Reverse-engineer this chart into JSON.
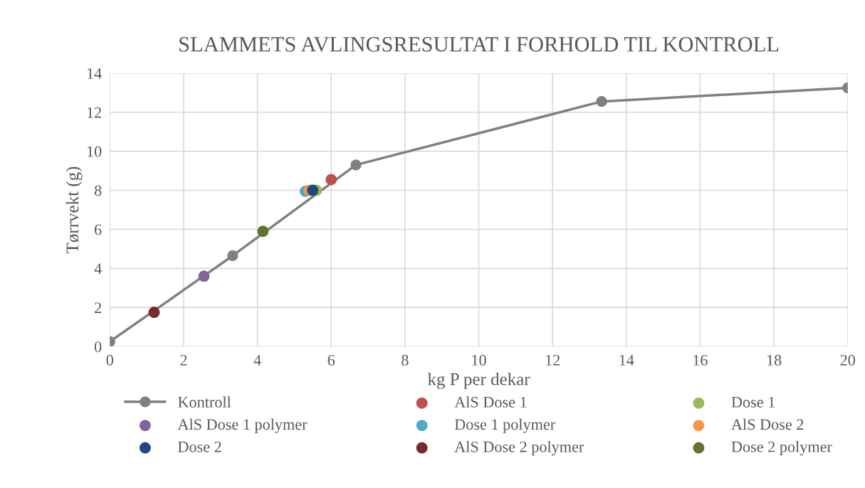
{
  "chart_data": {
    "type": "scatter",
    "title": "SLAMMETS AVLINGSRESULTAT I FORHOLD TIL KONTROLL",
    "xlabel": "kg P per dekar",
    "ylabel": "Tørrvekt (g)",
    "xlim": [
      0,
      20
    ],
    "xticks": [
      0,
      2,
      4,
      6,
      8,
      10,
      12,
      14,
      16,
      18,
      20
    ],
    "ylim": [
      0,
      14
    ],
    "yticks": [
      0,
      2,
      4,
      6,
      8,
      10,
      12,
      14
    ],
    "grid": true,
    "legend": "bottom",
    "marker": "circle",
    "series": [
      {
        "name": "Kontroll",
        "type": "line",
        "color": "#808080",
        "x": [
          0,
          3.33,
          6.67,
          13.33,
          20
        ],
        "values": [
          0.25,
          4.65,
          9.3,
          12.55,
          13.25
        ]
      },
      {
        "name": "AlS Dose 1",
        "color": "#c0504d",
        "x": [
          6.0
        ],
        "values": [
          8.55
        ]
      },
      {
        "name": "Dose 1",
        "color": "#9bbb59",
        "x": [
          5.6
        ],
        "values": [
          8.0
        ]
      },
      {
        "name": "AlS Dose 1 polymer",
        "color": "#8064a2",
        "x": [
          2.55
        ],
        "values": [
          3.6
        ]
      },
      {
        "name": "Dose 1 polymer",
        "color": "#4bacc6",
        "x": [
          5.3
        ],
        "values": [
          7.95
        ]
      },
      {
        "name": "AlS Dose 2",
        "color": "#f79646",
        "x": [
          5.4
        ],
        "values": [
          8.0
        ]
      },
      {
        "name": "Dose 2",
        "color": "#1f497d",
        "x": [
          5.5
        ],
        "values": [
          8.0
        ]
      },
      {
        "name": "AlS Dose 2 polymer",
        "color": "#772c2a",
        "x": [
          1.2
        ],
        "values": [
          1.75
        ]
      },
      {
        "name": "Dose 2 polymer",
        "color": "#5f7530",
        "x": [
          4.15
        ],
        "values": [
          5.9
        ]
      }
    ]
  }
}
